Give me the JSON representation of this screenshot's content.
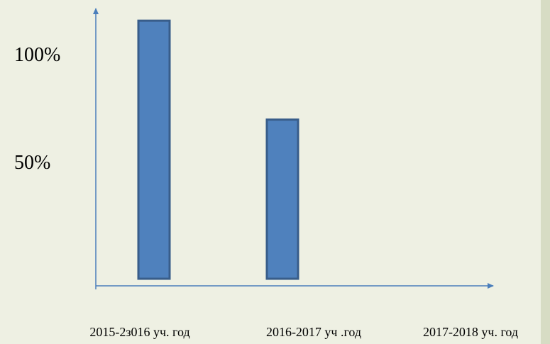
{
  "chart_data": {
    "type": "bar",
    "categories": [
      "2015-2з016 уч. год",
      "2016-2017 уч .год",
      "2017-2018 уч. год"
    ],
    "values": [
      120,
      74,
      null
    ],
    "color": "#4f81bd",
    "ylim": [
      0,
      125
    ],
    "yticks": [
      {
        "value": 50,
        "label": "50%"
      },
      {
        "value": 100,
        "label": "100%"
      }
    ]
  }
}
